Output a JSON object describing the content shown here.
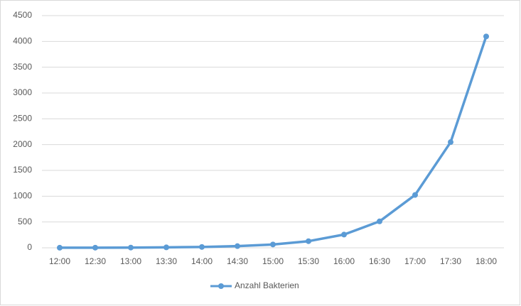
{
  "chart_data": {
    "type": "line",
    "categories": [
      "12:00",
      "12:30",
      "13:00",
      "13:30",
      "14:00",
      "14:30",
      "15:00",
      "15:30",
      "16:00",
      "16:30",
      "17:00",
      "17:30",
      "18:00"
    ],
    "series": [
      {
        "name": "Anzahl Bakterien",
        "color": "#5b9bd5",
        "values": [
          1,
          2,
          4,
          8,
          16,
          32,
          64,
          128,
          256,
          512,
          1024,
          2048,
          4096
        ]
      }
    ],
    "ylim": [
      0,
      4500
    ],
    "yticks": [
      0,
      500,
      1000,
      1500,
      2000,
      2500,
      3000,
      3500,
      4000,
      4500
    ],
    "grid": true,
    "legend": "bottom"
  }
}
